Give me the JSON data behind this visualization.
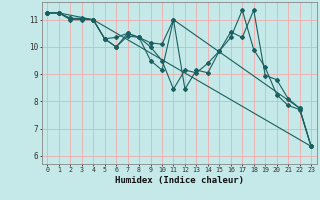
{
  "xlabel": "Humidex (Indice chaleur)",
  "xlim": [
    -0.5,
    23.5
  ],
  "ylim": [
    5.7,
    11.65
  ],
  "bg_color": "#c5e8e8",
  "grid_color": "#f0aaaa",
  "line_color": "#1a6060",
  "xticks": [
    0,
    1,
    2,
    3,
    4,
    5,
    6,
    7,
    8,
    9,
    10,
    11,
    12,
    13,
    14,
    15,
    16,
    17,
    18,
    19,
    20,
    21,
    22,
    23
  ],
  "yticks": [
    6,
    7,
    8,
    9,
    10,
    11
  ],
  "series": [
    {
      "x": [
        0,
        1,
        2,
        3,
        4,
        5,
        6,
        7,
        8,
        9,
        10,
        11,
        22,
        23
      ],
      "y": [
        11.25,
        11.25,
        11.05,
        11.05,
        11.0,
        10.3,
        10.0,
        10.5,
        10.35,
        9.5,
        9.15,
        11.0,
        7.75,
        6.35
      ]
    },
    {
      "x": [
        0,
        1,
        2,
        4,
        5,
        6,
        7,
        8,
        9,
        10,
        11,
        12,
        13,
        14,
        15,
        16,
        17,
        18,
        19,
        20,
        21,
        22,
        23
      ],
      "y": [
        11.25,
        11.25,
        11.05,
        11.0,
        10.3,
        10.35,
        10.5,
        10.35,
        10.15,
        10.1,
        11.0,
        8.45,
        9.15,
        9.05,
        9.85,
        10.55,
        10.35,
        11.35,
        8.95,
        8.8,
        8.1,
        7.75,
        6.35
      ]
    },
    {
      "x": [
        0,
        1,
        2,
        3,
        4,
        5,
        6,
        7,
        8,
        9,
        10,
        11,
        12,
        13,
        14,
        15,
        16,
        17,
        18,
        19,
        20,
        21,
        22,
        23
      ],
      "y": [
        11.25,
        11.25,
        11.0,
        11.0,
        11.0,
        10.3,
        10.0,
        10.4,
        10.35,
        10.0,
        9.5,
        8.45,
        9.15,
        9.05,
        9.4,
        9.85,
        10.35,
        11.35,
        9.9,
        9.25,
        8.25,
        7.85,
        7.7,
        6.35
      ]
    },
    {
      "x": [
        0,
        1,
        4,
        23
      ],
      "y": [
        11.25,
        11.25,
        11.0,
        6.35
      ]
    }
  ]
}
